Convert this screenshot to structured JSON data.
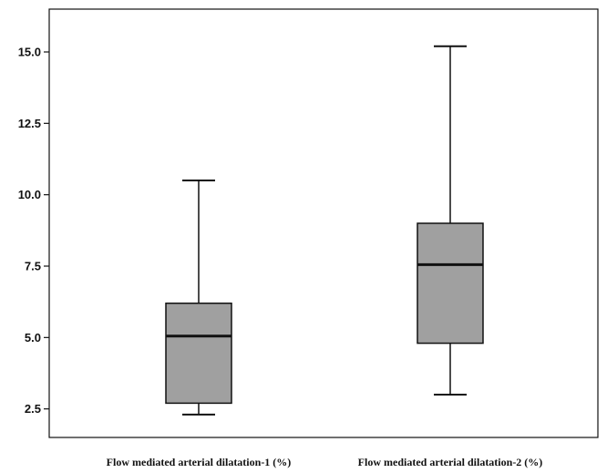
{
  "chart_data": {
    "type": "boxplot",
    "title": "",
    "xlabel": "",
    "ylabel": "",
    "ylim": [
      1.5,
      16.5
    ],
    "yticks": [
      2.5,
      5.0,
      7.5,
      10.0,
      12.5,
      15.0
    ],
    "ytick_labels": [
      "2.5",
      "5.0",
      "7.5",
      "10.0",
      "12.5",
      "15.0"
    ],
    "grid": false,
    "legend": "none",
    "categories": [
      "Flow mediated arterial dilatation-1 (%)",
      "Flow mediated arterial dilatation-2 (%)"
    ],
    "boxes": [
      {
        "min": 2.3,
        "q1": 2.7,
        "median": 5.05,
        "q3": 6.2,
        "max": 10.5
      },
      {
        "min": 3.0,
        "q1": 4.8,
        "median": 7.55,
        "q3": 9.0,
        "max": 15.2
      }
    ],
    "colors": {
      "box_fill": "#a0a0a0",
      "line": "#111111"
    }
  }
}
